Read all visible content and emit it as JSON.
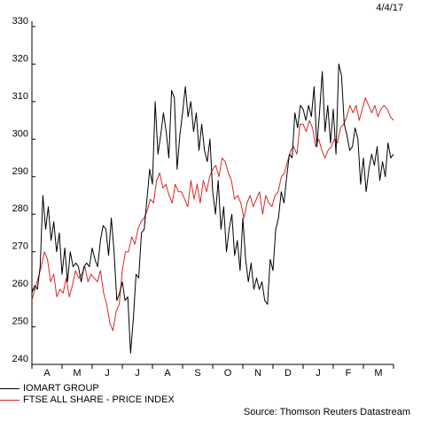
{
  "chart_data": {
    "type": "line",
    "date_label": "4/4/17",
    "ylim": [
      240,
      330
    ],
    "yticks": [
      240,
      250,
      260,
      270,
      280,
      290,
      300,
      310,
      320,
      330
    ],
    "x_labels": [
      "A",
      "M",
      "J",
      "J",
      "A",
      "S",
      "O",
      "N",
      "D",
      "J",
      "F",
      "M"
    ],
    "grid": false,
    "legend_position": "bottom-left",
    "series": [
      {
        "name": "IOMART GROUP",
        "color": "#000000",
        "values": [
          259,
          261,
          260,
          266,
          285,
          276,
          282,
          273,
          278,
          270,
          275,
          264,
          271,
          262,
          270,
          266,
          267,
          266,
          262,
          266,
          267,
          266,
          271,
          268,
          266,
          273,
          277,
          276,
          269,
          279,
          270,
          257,
          259,
          262,
          257,
          258,
          243,
          252,
          264,
          263,
          275,
          276,
          284,
          292,
          288,
          310,
          296,
          301,
          307,
          302,
          295,
          313,
          311,
          292,
          301,
          307,
          314,
          306,
          310,
          302,
          307,
          297,
          304,
          297,
          294,
          300,
          286,
          280,
          289,
          276,
          282,
          270,
          276,
          280,
          269,
          273,
          265,
          279,
          268,
          262,
          267,
          260,
          263,
          260,
          262,
          257,
          256,
          268,
          265,
          276,
          279,
          286,
          283,
          290,
          296,
          295,
          307,
          303,
          309,
          308,
          305,
          309,
          306,
          314,
          298,
          307,
          318,
          302,
          309,
          299,
          308,
          296,
          320,
          317,
          304,
          301,
          297,
          298,
          303,
          300,
          288,
          295,
          286,
          292,
          296,
          293,
          298,
          289,
          294,
          290,
          299,
          295,
          296
        ]
      },
      {
        "name": "FTSE ALL SHARE - PRICE INDEX",
        "color": "#d42a2a",
        "values": [
          257,
          260,
          263,
          266,
          270,
          268,
          262,
          264,
          258,
          260,
          259,
          263,
          258,
          261,
          265,
          263,
          264,
          266,
          262,
          264,
          263,
          262,
          265,
          259,
          256,
          251,
          249,
          254,
          256,
          265,
          270,
          270,
          274,
          272,
          276,
          278,
          279,
          281,
          284,
          283,
          289,
          291,
          287,
          288,
          285,
          283,
          288,
          286,
          286,
          284,
          282,
          289,
          284,
          288,
          283,
          289,
          286,
          290,
          292,
          293,
          290,
          295,
          294,
          291,
          289,
          284,
          285,
          283,
          279,
          283,
          285,
          282,
          284,
          286,
          280,
          285,
          283,
          282,
          285,
          286,
          290,
          291,
          294,
          297,
          298,
          296,
          304,
          304,
          302,
          305,
          303,
          298,
          300,
          297,
          295,
          297,
          298,
          300,
          299,
          303,
          304,
          306,
          309,
          307,
          309,
          305,
          308,
          311,
          309,
          307,
          309,
          306,
          308,
          309,
          308,
          306,
          305
        ]
      }
    ],
    "source": "Source: Thomson Reuters Datastream"
  }
}
